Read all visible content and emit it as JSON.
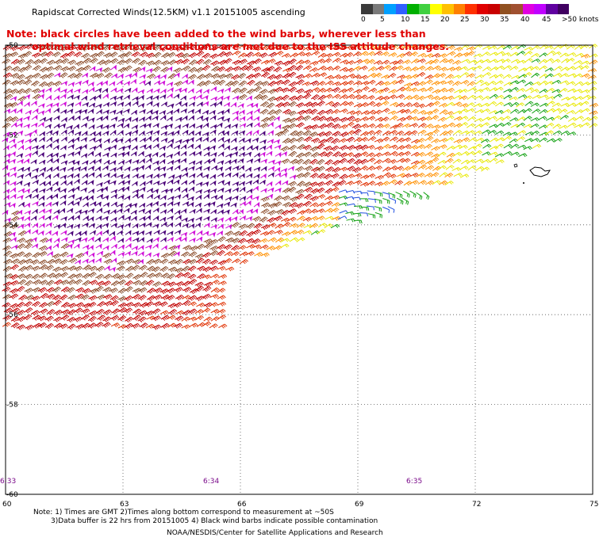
{
  "title": "Rapidscat Corrected Winds(12.5KM) v1.1 20151005 ascending",
  "note_line1": "Note: black circles have been added to the wind barbs, wherever less than",
  "note_line2": "optimal wind retrieval conditions are met due to the ISS attitude changes.",
  "colorbar": {
    "labels": [
      "0",
      "5",
      "10",
      "15",
      "20",
      "25",
      "30",
      "35",
      "40",
      "45",
      ">50 knots"
    ],
    "colors": [
      "#3a3a3a",
      "#7a7a7a",
      "#00a0ff",
      "#3060ff",
      "#00b000",
      "#40d040",
      "#ffff00",
      "#ffc000",
      "#ff8000",
      "#ff3000",
      "#e00000",
      "#c80000",
      "#905020",
      "#a05030",
      "#e000e0",
      "#c000ff",
      "#6000a0",
      "#400060"
    ]
  },
  "lat_labels": [
    "-50",
    "-52",
    "-54",
    "-56",
    "-58",
    "-60"
  ],
  "lon_labels": [
    "60",
    "63",
    "66",
    "69",
    "72",
    "75"
  ],
  "times": [
    "6:33",
    "6:34",
    "6:35"
  ],
  "footer": {
    "line1": "Note: 1) Times are GMT 2)Times along bottom correspond to measurement at ~50S",
    "line2": "3)Data buffer is 22 hrs from 20151005 4) Black wind barbs indicate possible contamination",
    "line3": "NOAA/NESDIS/Center for Satellite Applications and Research"
  }
}
